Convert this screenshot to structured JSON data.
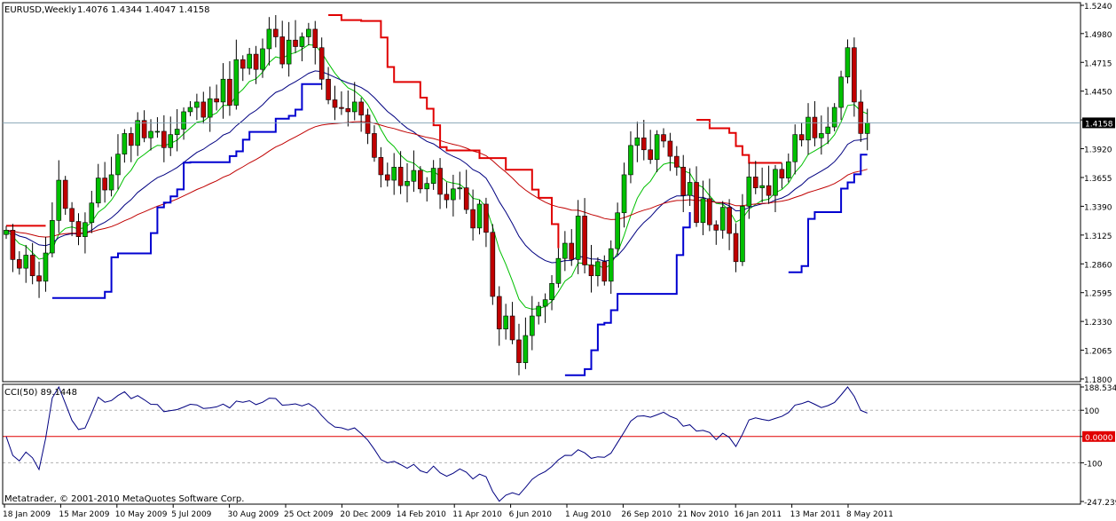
{
  "app": {
    "copyright": "Metatrader, © 2001-2010 MetaQuotes Software Corp."
  },
  "colors": {
    "background": "#ffffff",
    "frame": "#000000",
    "bull_candle": "#00c000",
    "bear_candle": "#c00000",
    "ma_fast": "#00c000",
    "ma_mid": "#000080",
    "ma_slow": "#c00000",
    "trail_up": "#0000d0",
    "trail_down": "#e00000",
    "cci_line": "#000080",
    "cci_zero": "#e00000",
    "price_tag_bg": "#000000"
  },
  "chart_data": [
    {
      "type": "candlestick",
      "symbol_label": "EURUSD,Weekly",
      "ohlc_label": "1.4076 1.4344 1.4047 1.4158",
      "current_price_tag": "1.4158",
      "ylim": [
        1.18,
        1.524
      ],
      "y_ticks": [
        "1.5240",
        "1.4980",
        "1.4715",
        "1.4450",
        "1.4185",
        "1.3920",
        "1.3655",
        "1.3390",
        "1.3125",
        "1.2860",
        "1.2595",
        "1.2330",
        "1.2065",
        "1.1800"
      ],
      "x_ticks": [
        "18 Jan 2009",
        "15 Mar 2009",
        "10 May 2009",
        "5 Jul 2009",
        "30 Aug 2009",
        "25 Oct 2009",
        "20 Dec 2009",
        "14 Feb 2010",
        "11 Apr 2010",
        "6 Jun 2010",
        "1 Aug 2010",
        "26 Sep 2010",
        "21 Nov 2010",
        "16 Jan 2011",
        "13 Mar 2011",
        "8 May 2011"
      ],
      "closes": [
        1.317,
        1.29,
        1.282,
        1.294,
        1.275,
        1.27,
        1.296,
        1.326,
        1.363,
        1.337,
        1.325,
        1.311,
        1.324,
        1.342,
        1.365,
        1.354,
        1.368,
        1.387,
        1.406,
        1.395,
        1.418,
        1.402,
        1.408,
        1.408,
        1.393,
        1.405,
        1.41,
        1.426,
        1.43,
        1.435,
        1.421,
        1.438,
        1.435,
        1.456,
        1.432,
        1.474,
        1.466,
        1.479,
        1.465,
        1.484,
        1.502,
        1.495,
        1.47,
        1.492,
        1.486,
        1.495,
        1.502,
        1.485,
        1.456,
        1.437,
        1.43,
        1.429,
        1.426,
        1.435,
        1.423,
        1.406,
        1.384,
        1.368,
        1.363,
        1.375,
        1.358,
        1.362,
        1.372,
        1.355,
        1.36,
        1.374,
        1.35,
        1.345,
        1.355,
        1.356,
        1.336,
        1.319,
        1.341,
        1.315,
        1.256,
        1.226,
        1.238,
        1.216,
        1.195,
        1.22,
        1.238,
        1.247,
        1.253,
        1.268,
        1.291,
        1.305,
        1.29,
        1.33,
        1.285,
        1.275,
        1.288,
        1.27,
        1.3,
        1.333,
        1.368,
        1.395,
        1.402,
        1.391,
        1.382,
        1.405,
        1.399,
        1.385,
        1.375,
        1.349,
        1.361,
        1.324,
        1.346,
        1.322,
        1.317,
        1.338,
        1.314,
        1.288,
        1.339,
        1.366,
        1.356,
        1.358,
        1.349,
        1.373,
        1.365,
        1.38,
        1.405,
        1.4,
        1.421,
        1.402,
        1.406,
        1.412,
        1.43,
        1.458,
        1.485,
        1.435,
        1.406,
        1.4158
      ],
      "cci_series": {
        "label": "CCI(50) 89.1448",
        "period": 50,
        "last_value": 89.1448,
        "ylim": [
          -247.2395,
          188.534
        ],
        "y_ticks": [
          "188.5340",
          "100",
          "0.0000",
          "-100",
          "-247.2395"
        ],
        "levels": [
          100,
          0,
          -100
        ]
      }
    }
  ]
}
